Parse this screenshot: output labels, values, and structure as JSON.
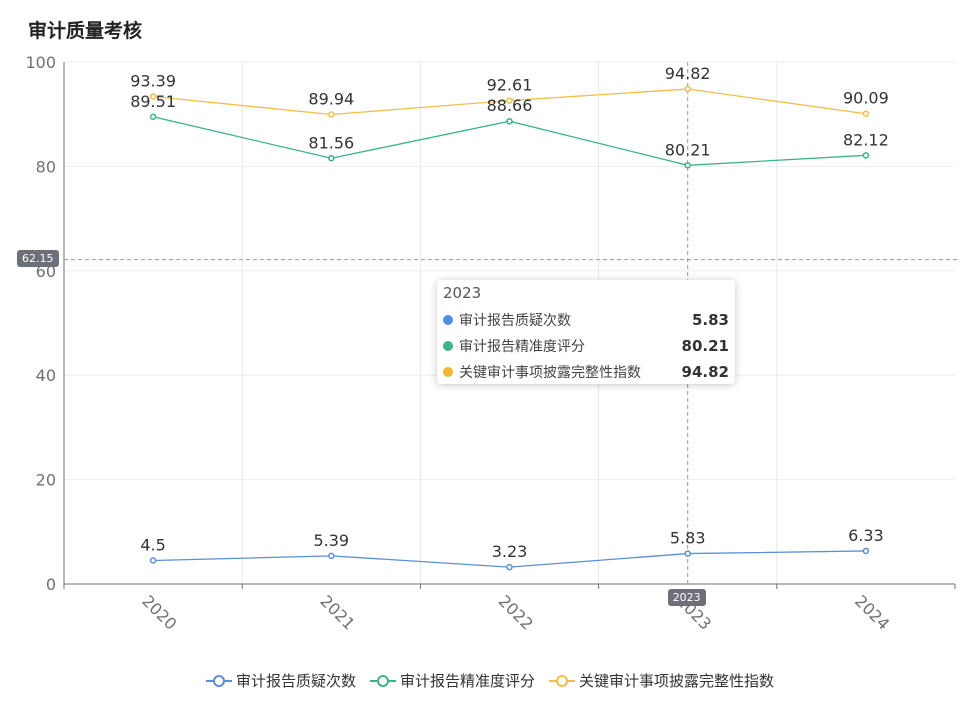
{
  "title": "审计质量考核",
  "tooltip": {
    "header": "2023",
    "rows": [
      {
        "name": "审计报告质疑次数",
        "value": "5.83",
        "color": "#4f8fdc"
      },
      {
        "name": "审计报告精准度评分",
        "value": "80.21",
        "color": "#3cb486"
      },
      {
        "name": "关键审计事项披露完整性指数",
        "value": "94.82",
        "color": "#f2b533"
      }
    ]
  },
  "crosshair": {
    "y_value_label": "62.15",
    "x_value_label": "2023",
    "y_value": 62.15,
    "x_category": "2023"
  },
  "chart_data": {
    "type": "line",
    "title": "审计质量考核",
    "categories": [
      "2020",
      "2021",
      "2022",
      "2023",
      "2024"
    ],
    "ylim": [
      0,
      100
    ],
    "yticks": [
      0,
      20,
      40,
      60,
      80,
      100
    ],
    "series": [
      {
        "name": "审计报告质疑次数",
        "color": "#5b8ed8",
        "values": [
          4.5,
          5.39,
          3.23,
          5.83,
          6.33
        ]
      },
      {
        "name": "审计报告精准度评分",
        "color": "#3ab487",
        "values": [
          89.51,
          81.56,
          88.66,
          80.21,
          82.12
        ]
      },
      {
        "name": "关键审计事项披露完整性指数",
        "color": "#f2be48",
        "values": [
          93.39,
          89.94,
          92.61,
          94.82,
          90.09
        ]
      }
    ],
    "legend_position": "bottom-center"
  }
}
